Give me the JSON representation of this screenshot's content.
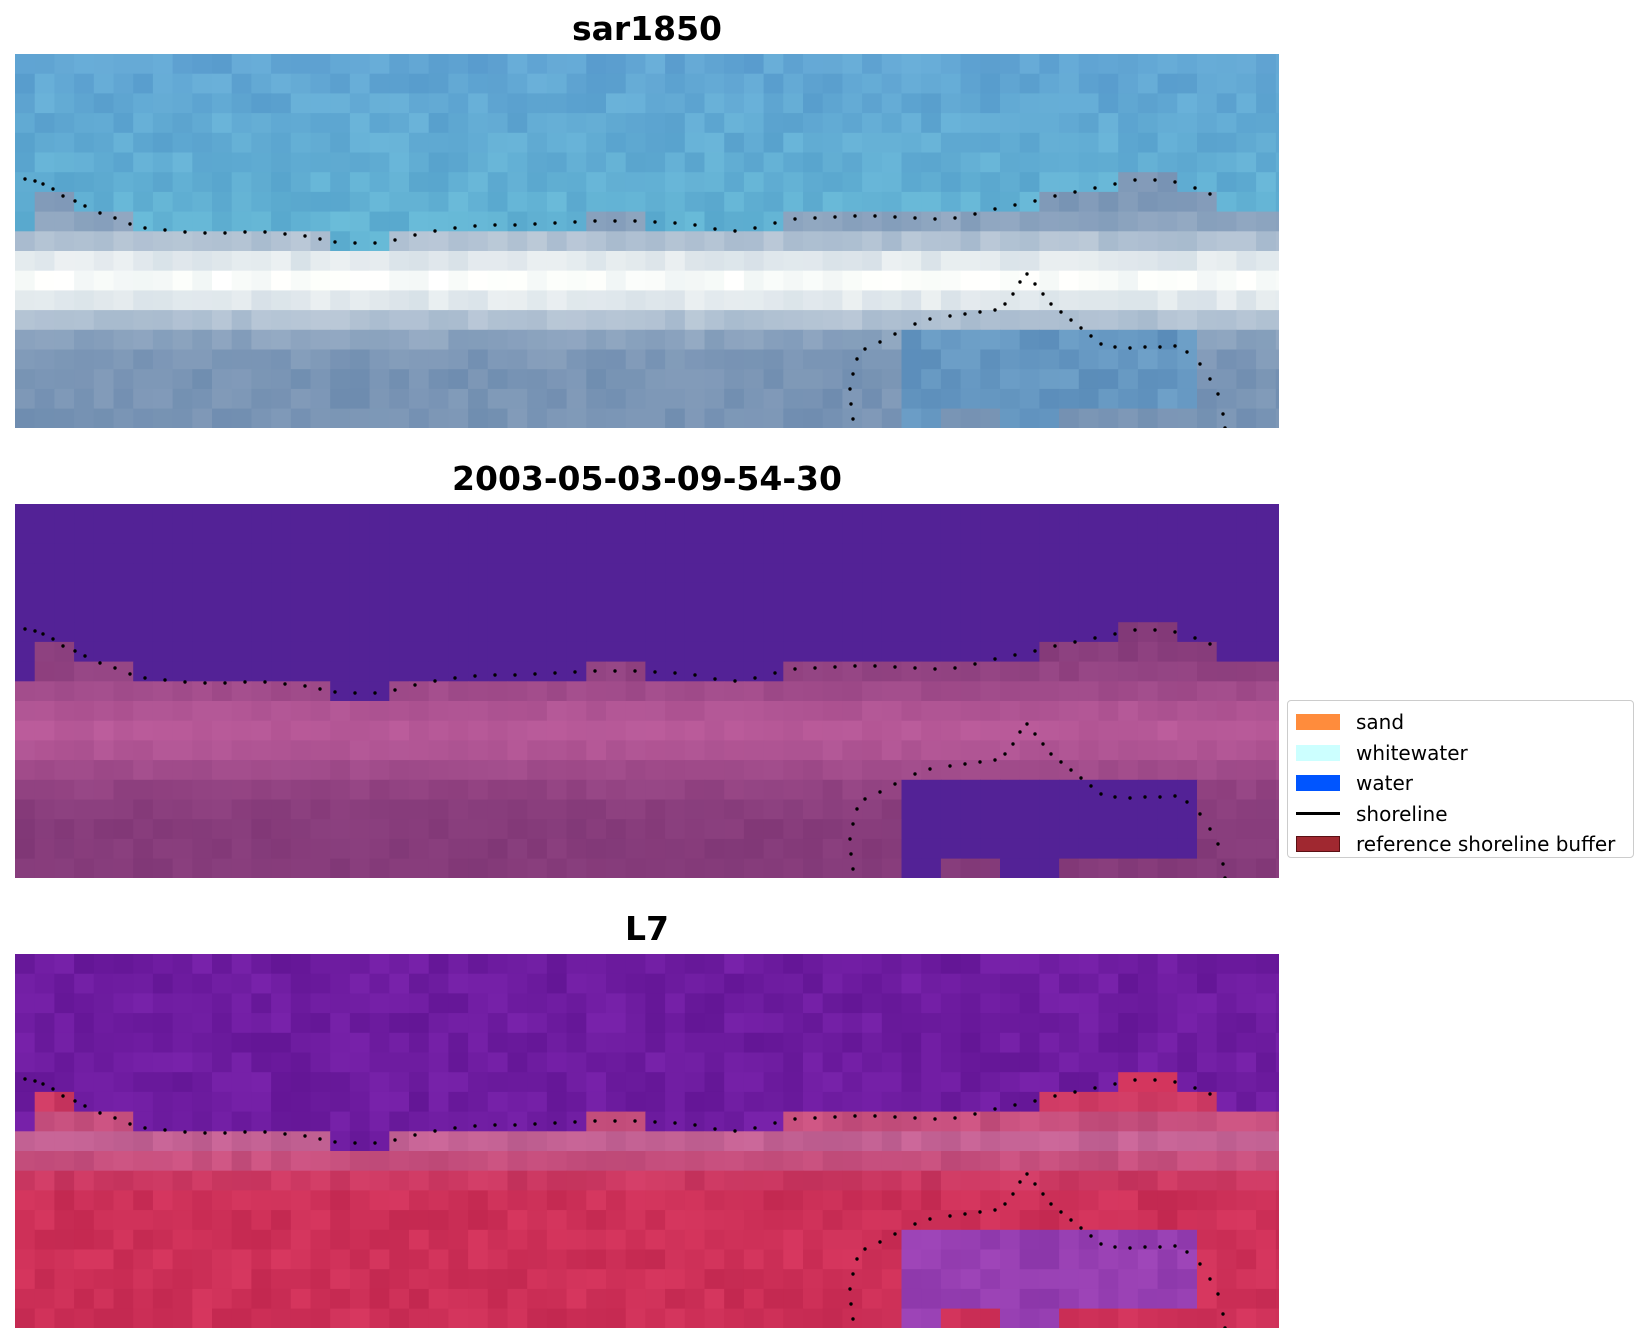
{
  "panels": [
    {
      "title": "sar1850",
      "style": "rgb"
    },
    {
      "title": "2003-05-03-09-54-30",
      "style": "classified"
    },
    {
      "title": "L7",
      "style": "ndwi"
    }
  ],
  "legend": {
    "items": [
      {
        "label": "sand",
        "type": "patch",
        "color": "#ff8c3c"
      },
      {
        "label": "whitewater",
        "type": "patch",
        "color": "#ccffff"
      },
      {
        "label": "water",
        "type": "patch",
        "color": "#0055ff"
      },
      {
        "label": "shoreline",
        "type": "line",
        "color": "#000000"
      },
      {
        "label": "reference shoreline buffer",
        "type": "patch",
        "color": "#a02830"
      }
    ]
  },
  "colors": {
    "sea_blue": "#5b9fcf",
    "classified_water": "#532296",
    "classified_land": "#8a3e80",
    "ndwi_water": "#65189c",
    "ndwi_land": "#c42a5a",
    "shoreline_dots": "#000000"
  }
}
